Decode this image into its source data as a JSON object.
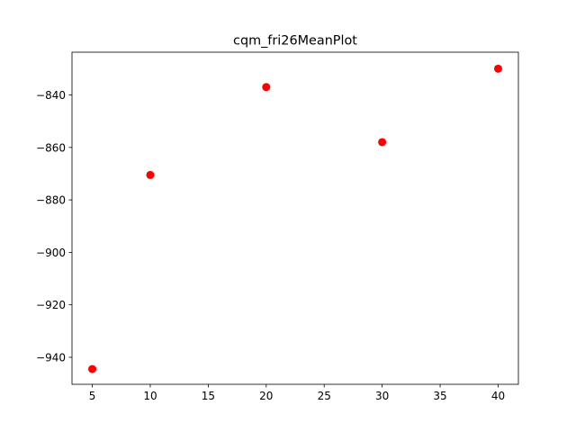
{
  "chart_data": {
    "type": "scatter",
    "title": "cqm_fri26MeanPlot",
    "xlabel": "",
    "ylabel": "",
    "xlim": [
      3.25,
      41.75
    ],
    "ylim": [
      -950.3,
      -823.7
    ],
    "x_ticks": [
      5,
      10,
      15,
      20,
      25,
      30,
      35,
      40
    ],
    "x_tick_labels": [
      "5",
      "10",
      "15",
      "20",
      "25",
      "30",
      "35",
      "40"
    ],
    "y_ticks": [
      -940,
      -920,
      -900,
      -880,
      -860,
      -840
    ],
    "y_tick_labels": [
      "−940",
      "−920",
      "−900",
      "−880",
      "−860",
      "−840"
    ],
    "grid": false,
    "legend": "none",
    "series": [
      {
        "color": "#ff0000",
        "marker": "circle",
        "x": [
          5,
          10,
          20,
          30,
          40
        ],
        "y": [
          -944.5,
          -870.5,
          -837.0,
          -858.0,
          -830.0
        ]
      }
    ]
  }
}
